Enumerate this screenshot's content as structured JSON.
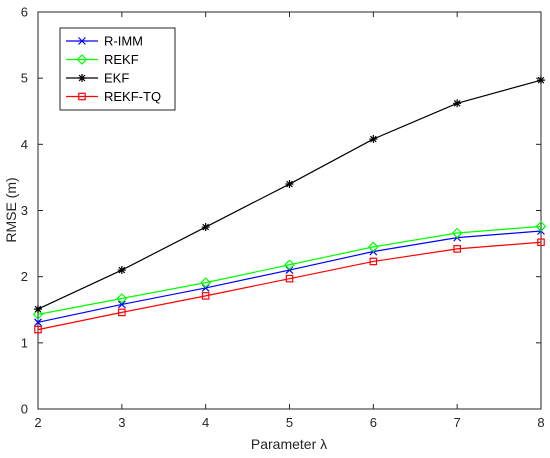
{
  "chart_data": {
    "type": "line",
    "xlabel": "Parameter λ",
    "ylabel": "RMSE (m)",
    "xlim": [
      2,
      8
    ],
    "ylim": [
      0,
      6
    ],
    "x_ticks": [
      "2",
      "3",
      "4",
      "5",
      "6",
      "7",
      "8"
    ],
    "y_ticks": [
      "0",
      "1",
      "2",
      "3",
      "4",
      "5",
      "6"
    ],
    "grid": false,
    "legend_position": "top-left",
    "x": [
      2,
      3,
      4,
      5,
      6,
      7,
      8
    ],
    "series": [
      {
        "name": "R-IMM",
        "color": "#0000ff",
        "marker": "x",
        "values": [
          1.31,
          1.58,
          1.83,
          2.1,
          2.38,
          2.59,
          2.69
        ]
      },
      {
        "name": "REKF",
        "color": "#00ff00",
        "marker": "diamond",
        "values": [
          1.43,
          1.67,
          1.91,
          2.18,
          2.45,
          2.66,
          2.76
        ]
      },
      {
        "name": "EKF",
        "color": "#000000",
        "marker": "asterisk",
        "values": [
          1.51,
          2.1,
          2.75,
          3.4,
          4.08,
          4.62,
          4.97
        ]
      },
      {
        "name": "REKF-TQ",
        "color": "#ff0000",
        "marker": "square",
        "values": [
          1.2,
          1.46,
          1.71,
          1.97,
          2.23,
          2.42,
          2.52
        ]
      }
    ]
  }
}
